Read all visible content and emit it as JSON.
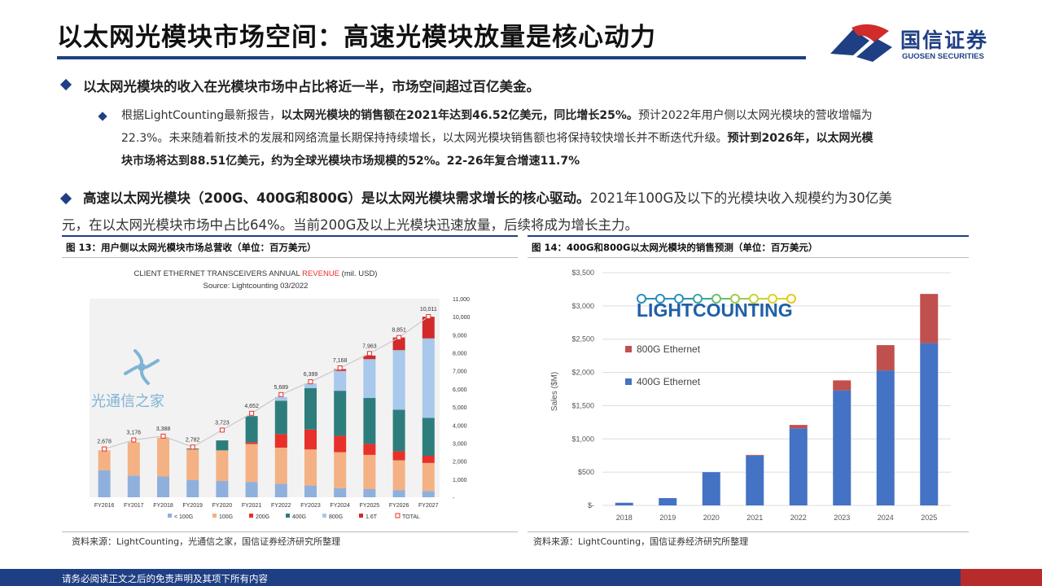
{
  "header": {
    "title": "以太网光模块市场空间：高速光模块放量是核心动力",
    "logo_cn": "国信证券",
    "logo_en": "GUOSEN SECURITIES"
  },
  "bullets": {
    "b1": "以太网光模块的收入在光模块市场中占比将近一半，市场空间超过百亿美金。",
    "sub_l1_a": "根据LightCounting最新报告，",
    "sub_l1_b": "以太网光模块的销售额在2021年达到46.52亿美元，同比增长25%。",
    "sub_l1_c": "预计2022年用户侧以太网光模块的营收增幅为",
    "sub_l2": "22.3%。未来随着新技术的发展和网络流量长期保持持续增长，以太网光模块销售额也将保持较快增长并不断迭代升级。",
    "sub_l2_b": "预计到2026年，以太网光模",
    "sub_l3": "块市场将达到88.51亿美元，约为全球光模块市场规模的52%。22-26年复合增速11.7%",
    "b3_l1_a": "高速以太网光模块（200G、400G和800G）是以太网光模块需求增长的核心驱动。",
    "b3_l1_b": "2021年100G及以下的光模块收入规模约为30亿美",
    "b3_l2": "元，在以太网光模块市场中占比64%。当前200G及以上光模块迅速放量，后续将成为增长主力。"
  },
  "figures": {
    "fig13_caption": "图 13：用户侧以太网光模块市场总营收（单位：百万美元）",
    "fig13_source": "资料来源：LightCounting，光通信之家，国信证券经济研究所整理",
    "fig14_caption": "图 14：400G和800G以太网光模块的销售预测（单位：百万美元）",
    "fig14_source": "资料来源：LightCounting，国信证券经济研究所整理",
    "watermark": "光通信之家",
    "lightcounting_logo": "LIGHTCOUNTING"
  },
  "footer": {
    "text": "请务必阅读正文之后的免责声明及其项下所有内容"
  },
  "colors": {
    "brand_blue": "#1f3f84",
    "brand_red": "#b82b2b"
  },
  "chart_data": [
    {
      "type": "bar",
      "stacked": true,
      "title": "CLIENT ETHERNET TRANSCEIVERS ANNUAL REVENUE (mil. USD)",
      "title_parts": [
        "CLIENT ETHERNET TRANSCEIVERS ANNUAL ",
        "REVENUE",
        " (mil. USD)"
      ],
      "subtitle": "Source: Lightcounting 03/2022",
      "categories": [
        "FY2016",
        "FY2017",
        "FY2018",
        "FY2019",
        "FY2020",
        "FY2021",
        "FY2022",
        "FY2023",
        "FY2024",
        "FY2025",
        "FY2026",
        "FY2027"
      ],
      "y_ticks": [
        "11,000",
        "10,000",
        "9,000",
        "8,000",
        "7,000",
        "6,000",
        "5,000",
        "4,000",
        "3,000",
        "2,000",
        "1,000",
        "-"
      ],
      "ylim": [
        0,
        11000
      ],
      "series": [
        {
          "name": "< 100G",
          "color": "#8fb0dc",
          "values": [
            1500,
            1200,
            1150,
            950,
            900,
            850,
            750,
            650,
            500,
            450,
            400,
            350
          ]
        },
        {
          "name": "100G",
          "color": "#f4b183",
          "values": [
            1100,
            1850,
            2150,
            1700,
            1700,
            2100,
            2000,
            2000,
            2000,
            1900,
            1650,
            1550
          ]
        },
        {
          "name": "200G",
          "color": "#e8302a",
          "values": [
            0,
            0,
            0,
            0,
            0,
            100,
            750,
            1100,
            900,
            600,
            500,
            400
          ]
        },
        {
          "name": "400G",
          "color": "#2e7d7d",
          "values": [
            0,
            0,
            0,
            50,
            550,
            1450,
            1850,
            2300,
            2500,
            2550,
            2300,
            2100
          ]
        },
        {
          "name": "800G",
          "color": "#a8c8ec",
          "values": [
            0,
            0,
            0,
            0,
            0,
            0,
            200,
            250,
            1100,
            2150,
            3300,
            4400
          ]
        },
        {
          "name": "1.6T",
          "color": "#d22a2a",
          "values": [
            0,
            0,
            0,
            0,
            0,
            0,
            0,
            0,
            100,
            200,
            700,
            1200
          ]
        }
      ],
      "totals": {
        "name": "TOTAL",
        "values": [
          2678,
          3176,
          3388,
          2782,
          3723,
          4652,
          5689,
          6399,
          7168,
          7963,
          8851,
          10011
        ],
        "labels": [
          "2,678",
          "3,176",
          "3,388",
          "2,782",
          "3,723",
          "4,652",
          "5,689",
          "6,399",
          "7,168",
          "7,963",
          "8,851",
          "10,011"
        ]
      },
      "legend_position": "bottom",
      "grid": false
    },
    {
      "type": "bar",
      "stacked": true,
      "categories": [
        "2018",
        "2019",
        "2020",
        "2021",
        "2022",
        "2023",
        "2024",
        "2025"
      ],
      "ylabel": "Sales ($M)",
      "y_ticks": [
        "$3,500",
        "$3,000",
        "$2,500",
        "$2,000",
        "$1,500",
        "$1,000",
        "$500",
        "$-"
      ],
      "ylim": [
        0,
        3500
      ],
      "series": [
        {
          "name": "400G Ethernet",
          "color": "#4472c4",
          "values": [
            40,
            110,
            500,
            750,
            1160,
            1730,
            2030,
            2440
          ]
        },
        {
          "name": "800G Ethernet",
          "color": "#c0504d",
          "values": [
            0,
            0,
            0,
            10,
            50,
            150,
            380,
            740
          ]
        }
      ],
      "legend_position": "top-left",
      "grid": true
    }
  ]
}
